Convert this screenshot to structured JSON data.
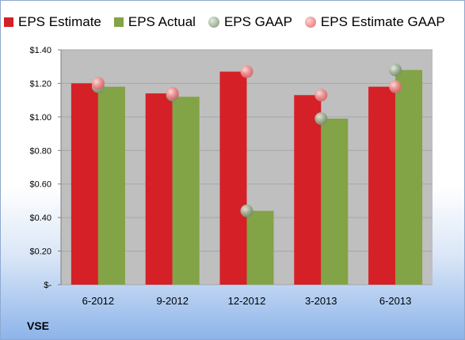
{
  "chart_data": {
    "type": "bar",
    "categories": [
      "6-2012",
      "9-2012",
      "12-2012",
      "3-2013",
      "6-2013"
    ],
    "series": [
      {
        "name": "EPS Estimate",
        "kind": "bar",
        "color": "#d42026",
        "values": [
          1.2,
          1.14,
          1.27,
          1.13,
          1.18
        ]
      },
      {
        "name": "EPS Actual",
        "kind": "bar",
        "color": "#82a346",
        "values": [
          1.18,
          1.12,
          0.44,
          0.99,
          1.28
        ]
      },
      {
        "name": "EPS GAAP",
        "kind": "marker",
        "color": "#9fb196",
        "values": [
          1.18,
          1.13,
          0.44,
          0.99,
          1.28
        ]
      },
      {
        "name": "EPS Estimate GAAP",
        "kind": "marker",
        "color": "#ee8c8c",
        "values": [
          1.2,
          1.14,
          1.27,
          1.13,
          1.18
        ]
      }
    ],
    "yticks": [
      "$-",
      "$0.20",
      "$0.40",
      "$0.60",
      "$0.80",
      "$1.00",
      "$1.20",
      "$1.40"
    ],
    "ylim": [
      0,
      1.4
    ],
    "grid": true,
    "legend_position": "top"
  },
  "ticker": "VSE"
}
